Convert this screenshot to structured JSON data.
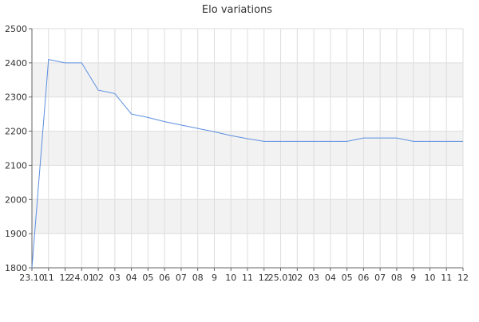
{
  "chart_data": {
    "type": "line",
    "title": "Elo variations",
    "xlabel": "",
    "ylabel": "",
    "ylim": [
      1800,
      2500
    ],
    "yticks": [
      1800,
      1900,
      2000,
      2100,
      2200,
      2300,
      2400,
      2500
    ],
    "grid": true,
    "x": [
      "23.10",
      "11",
      "12",
      "24.01",
      "02",
      "03",
      "04",
      "05",
      "06",
      "07",
      "08",
      "9",
      "10",
      "11",
      "12",
      "25.01",
      "02",
      "03",
      "04",
      "05",
      "06",
      "07",
      "08",
      "9",
      "10",
      "11",
      "12"
    ],
    "series": [
      {
        "values": [
          1800,
          2410,
          2400,
          2400,
          2320,
          2310,
          2250,
          2240,
          2228,
          2218,
          2208,
          2198,
          2187,
          2178,
          2170,
          2170,
          2170,
          2170,
          2170,
          2170,
          2180,
          2180,
          2180,
          2170,
          2170,
          2170,
          2170
        ]
      }
    ],
    "colors": {
      "line": "#5b8ee0",
      "band": "#f2f2f2",
      "grid": "#dddddd",
      "axis": "#666666"
    }
  }
}
